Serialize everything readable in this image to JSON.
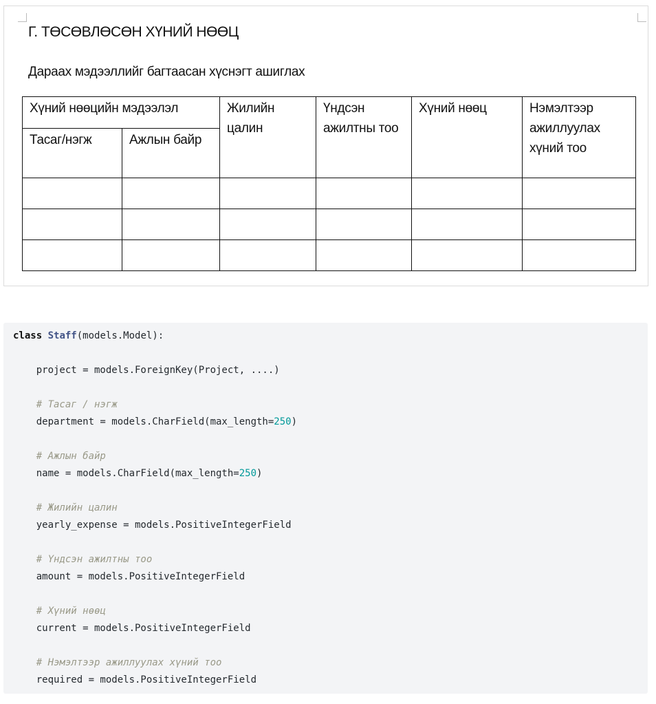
{
  "document": {
    "title": "Г. ТӨСӨВЛӨСӨН ХҮНИЙ НӨӨЦ",
    "subtitle": "Дараах мэдээллийг багтаасан хүснэгт ашиглах",
    "table": {
      "group_header": "Хүний нөөцийн мэдээлэл",
      "headers": [
        "Тасаг/нэгж",
        "Ажлын байр",
        "Жилийн цалин",
        "Үндсэн ажилтны тоо",
        "Хүний нөөц",
        "Нэмэлтээр ажиллуулах хүний тоо"
      ],
      "rows": [
        [
          "",
          "",
          "",
          "",
          "",
          ""
        ],
        [
          "",
          "",
          "",
          "",
          "",
          ""
        ],
        [
          "",
          "",
          "",
          "",
          "",
          ""
        ]
      ]
    }
  },
  "code": {
    "lines": [
      {
        "kw": "class",
        "cls": "Staff",
        "rest": "(models.Model):"
      },
      {
        "text": "    project = models.ForeignKey(Project, ....)"
      },
      {
        "comment": "    # Тасаг / нэгж"
      },
      {
        "pre": "    department = models.CharField(max_length=",
        "num": "250",
        "post": ")"
      },
      {
        "comment": "    # Ажлын байр"
      },
      {
        "pre": "    name = models.CharField(max_length=",
        "num": "250",
        "post": ")"
      },
      {
        "comment": "    # Жилийн цалин"
      },
      {
        "text": "    yearly_expense = models.PositiveIntegerField"
      },
      {
        "comment": "    # Үндсэн ажилтны тоо"
      },
      {
        "text": "    amount = models.PositiveIntegerField"
      },
      {
        "comment": "    # Хүний нөөц"
      },
      {
        "text": "    current = models.PositiveIntegerField"
      },
      {
        "comment": "    # Нэмэлтээр ажиллуулах хүний тоо"
      },
      {
        "text": "    required = models.PositiveIntegerField"
      }
    ]
  }
}
